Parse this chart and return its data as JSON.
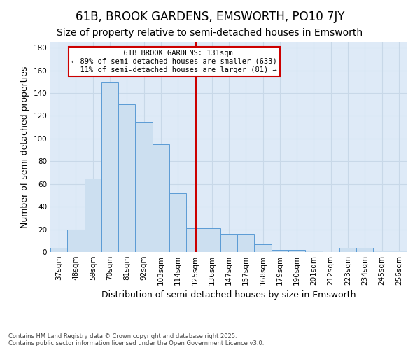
{
  "title": "61B, BROOK GARDENS, EMSWORTH, PO10 7JY",
  "subtitle": "Size of property relative to semi-detached houses in Emsworth",
  "xlabel": "Distribution of semi-detached houses by size in Emsworth",
  "ylabel": "Number of semi-detached properties",
  "footnote1": "Contains HM Land Registry data © Crown copyright and database right 2025.",
  "footnote2": "Contains public sector information licensed under the Open Government Licence v3.0.",
  "bin_labels": [
    "37sqm",
    "48sqm",
    "59sqm",
    "70sqm",
    "81sqm",
    "92sqm",
    "103sqm",
    "114sqm",
    "125sqm",
    "136sqm",
    "147sqm",
    "157sqm",
    "168sqm",
    "179sqm",
    "190sqm",
    "201sqm",
    "212sqm",
    "223sqm",
    "234sqm",
    "245sqm",
    "256sqm"
  ],
  "bar_heights": [
    4,
    20,
    65,
    150,
    130,
    115,
    95,
    52,
    21,
    21,
    16,
    16,
    7,
    2,
    2,
    1,
    0,
    4,
    4,
    1,
    1
  ],
  "bar_color": "#ccdff0",
  "bar_edge_color": "#5b9bd5",
  "property_line_x": 131,
  "property_label": "61B BROOK GARDENS: 131sqm",
  "pct_smaller": 89,
  "count_smaller": 633,
  "pct_larger": 11,
  "count_larger": 81,
  "annotation_box_color": "#cc0000",
  "vertical_line_color": "#cc0000",
  "ylim": [
    0,
    185
  ],
  "yticks": [
    0,
    20,
    40,
    60,
    80,
    100,
    120,
    140,
    160,
    180
  ],
  "grid_color": "#c8d8e8",
  "background_color": "#deeaf7",
  "title_fontsize": 12,
  "subtitle_fontsize": 10,
  "axis_label_fontsize": 9,
  "tick_fontsize": 7.5,
  "annotation_fontsize": 7.5
}
